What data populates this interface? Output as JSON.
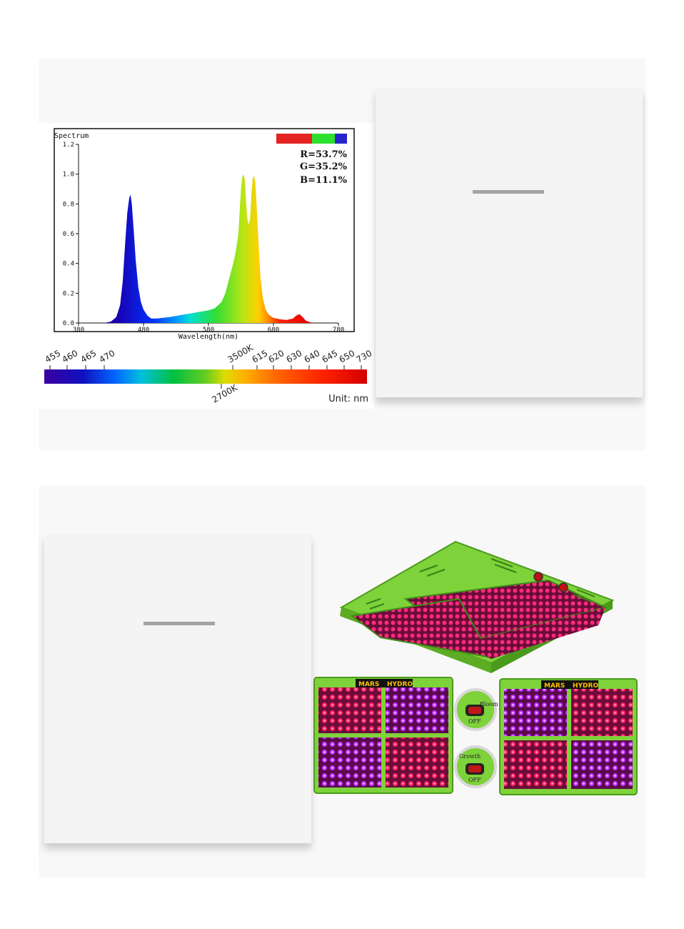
{
  "chart_data": {
    "type": "area",
    "title": "Spectrum",
    "xlabel": "Wavelength(nm)",
    "ylabel": "",
    "xlim": [
      380,
      780
    ],
    "ylim": [
      0,
      1.2
    ],
    "x_ticks": [
      380,
      480,
      580,
      680,
      780
    ],
    "y_ticks": [
      "0.0",
      "0.2",
      "0.4",
      "0.6",
      "0.8",
      "1.0",
      "1.2"
    ],
    "series": [
      {
        "x": [
          380,
          420,
          430,
          438,
          444,
          448,
          452,
          455,
          458,
          460,
          462,
          465,
          468,
          472,
          476,
          480,
          486,
          492,
          500,
          520,
          540,
          560,
          580,
          590,
          600,
          606,
          612,
          618,
          622,
          626,
          628,
          630,
          632,
          634,
          636,
          638,
          640,
          642,
          644,
          646,
          648,
          650,
          652,
          654,
          656,
          660,
          664,
          668,
          672,
          676,
          680,
          690,
          700,
          710,
          715,
          720,
          725,
          730,
          740,
          780
        ],
        "y": [
          0,
          0,
          0.01,
          0.04,
          0.12,
          0.28,
          0.55,
          0.74,
          0.84,
          0.86,
          0.8,
          0.62,
          0.42,
          0.24,
          0.14,
          0.09,
          0.05,
          0.03,
          0.03,
          0.04,
          0.055,
          0.07,
          0.085,
          0.1,
          0.14,
          0.2,
          0.3,
          0.4,
          0.48,
          0.6,
          0.75,
          0.9,
          0.98,
          1.0,
          0.96,
          0.8,
          0.7,
          0.66,
          0.7,
          0.86,
          0.97,
          0.99,
          0.95,
          0.8,
          0.62,
          0.3,
          0.16,
          0.09,
          0.06,
          0.045,
          0.035,
          0.025,
          0.02,
          0.03,
          0.05,
          0.06,
          0.04,
          0.015,
          0,
          0
        ]
      }
    ],
    "legend": {
      "placement": "top-right",
      "items": [
        "R=53.7%",
        "G=35.2%",
        "B=11.1%"
      ],
      "colors": [
        "#e42222",
        "#2ee02e",
        "#2424c8"
      ]
    },
    "wavelength_bar": {
      "top_labels": [
        "455",
        "460",
        "465",
        "470",
        "3500K",
        "615",
        "620",
        "630",
        "640",
        "645",
        "650",
        "730"
      ],
      "bottom_label": "2700K",
      "unit": "Unit: nm"
    }
  },
  "product": {
    "brand_left": "MARS",
    "brand_right": "HYDRO",
    "bloom_label": "Bloom",
    "growth_label": "Growth",
    "off_label": "OFF"
  }
}
